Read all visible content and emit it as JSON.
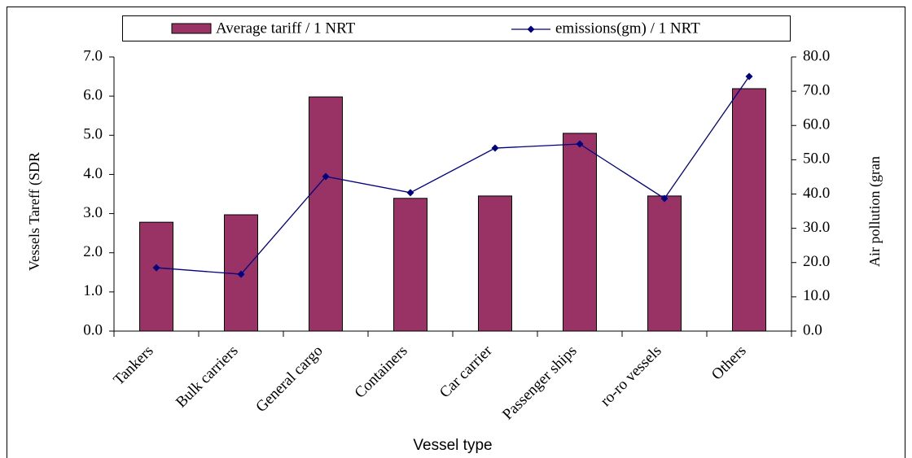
{
  "chart_data": {
    "type": "bar-line",
    "categories": [
      "Tankers",
      "Bulk carriers",
      "General cargo",
      "Containers",
      "Car carrier",
      "Passenger ships",
      "ro-ro vessels",
      "Others"
    ],
    "series": [
      {
        "name": "Average tariff / 1 NRT",
        "type": "bar",
        "color": "#993366",
        "values": [
          2.78,
          2.97,
          5.98,
          3.39,
          3.45,
          5.05,
          3.45,
          6.19
        ]
      },
      {
        "name": "emissions(gm) / 1 NRT",
        "type": "line",
        "axis": "y2",
        "color": "#000080",
        "values": [
          18.5,
          16.6,
          45.1,
          40.4,
          53.4,
          54.6,
          38.7,
          74.3
        ]
      }
    ],
    "y_label": "Vessels Tareff (SDR",
    "y2_label": "Air pollution (gran",
    "x_label": "Vessel type",
    "ylim": [
      0,
      7
    ],
    "yticks": [
      {
        "value": 0,
        "label": "0.0"
      },
      {
        "value": 1,
        "label": "1.0"
      },
      {
        "value": 2,
        "label": "2.0"
      },
      {
        "value": 3,
        "label": "3.0"
      },
      {
        "value": 4,
        "label": "4.0"
      },
      {
        "value": 5,
        "label": "5.0"
      },
      {
        "value": 6,
        "label": "6.0"
      },
      {
        "value": 7,
        "label": "7.0"
      }
    ],
    "y2lim": [
      0,
      80
    ],
    "y2ticks": [
      {
        "value": 0,
        "label": "0.0"
      },
      {
        "value": 10,
        "label": "10.0"
      },
      {
        "value": 20,
        "label": "20.0"
      },
      {
        "value": 30,
        "label": "30.0"
      },
      {
        "value": 40,
        "label": "40.0"
      },
      {
        "value": 50,
        "label": "50.0"
      },
      {
        "value": 60,
        "label": "60.0"
      },
      {
        "value": 70,
        "label": "70.0"
      },
      {
        "value": 80,
        "label": "80.0"
      }
    ],
    "legend": "top"
  }
}
